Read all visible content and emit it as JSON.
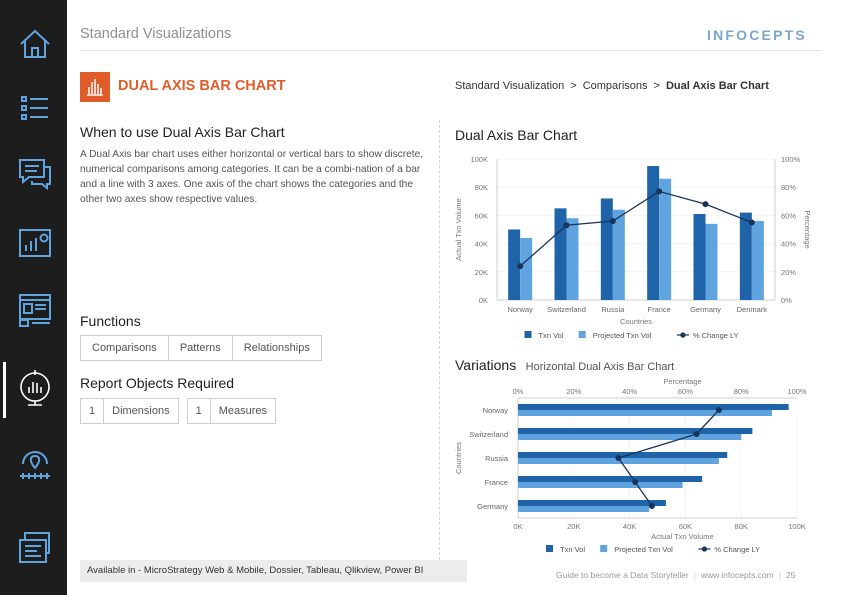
{
  "header": {
    "title": "Standard Visualizations",
    "logo_text": "INFOCEPTS"
  },
  "page": {
    "title": "DUAL AXIS BAR CHART",
    "breadcrumb": [
      "Standard Visualization",
      "Comparisons",
      "Dual Axis Bar Chart"
    ],
    "breadcrumb_sep": ">",
    "when_heading": "When to use Dual Axis Bar Chart",
    "when_text": "A Dual Axis bar chart uses either horizontal or vertical bars to show discrete, numerical comparisons among categories. It can be a combi-nation of a bar and a line with 3 axes. One axis of the chart shows the categories and the other two axes show respective values.",
    "functions_heading": "Functions",
    "functions": [
      "Comparisons",
      "Patterns",
      "Relationships"
    ],
    "objects_heading": "Report Objects Required",
    "objects": [
      {
        "count": "1",
        "label": "Dimensions"
      },
      {
        "count": "1",
        "label": "Measures"
      }
    ],
    "chart_heading": "Dual Axis Bar Chart",
    "variations_heading": "Variations",
    "variations_sub": "Horizontal Dual Axis Bar Chart",
    "available": "Available in - MicroStrategy Web & Mobile, Dossier, Tableau, Qlikview, Power BI"
  },
  "footer": {
    "text": "Guide to become a Data Storyteller",
    "url": "www.infocepts.com",
    "page": "25"
  },
  "sidebar": {
    "icons": [
      "home-icon",
      "list-icon",
      "chat-icon",
      "dashboard-icon",
      "browser-icon",
      "chart-target-icon",
      "map-icon",
      "cards-icon"
    ]
  },
  "colors": {
    "accent": "#e05d2a",
    "dark_blue": "#1f64a8",
    "light_blue": "#5fa3df",
    "line": "#17355a",
    "sidebar": "#1d1d1d"
  },
  "chart_data": [
    {
      "type": "bar",
      "orientation": "vertical",
      "categories": [
        "Norway",
        "Switzerland",
        "Russia",
        "France",
        "Germany",
        "Denmark"
      ],
      "series": [
        {
          "name": "Txn Vol",
          "axis": "left",
          "values": [
            50000,
            65000,
            72000,
            95000,
            61000,
            62000
          ]
        },
        {
          "name": "Projected Txn Vol",
          "axis": "left",
          "values": [
            44000,
            58000,
            64000,
            86000,
            54000,
            56000
          ]
        },
        {
          "name": "% Change LY",
          "axis": "right",
          "kind": "line",
          "values": [
            24,
            53,
            56,
            77,
            68,
            55
          ]
        }
      ],
      "xlabel": "Countries",
      "ylabel": "Actual Txn Volume",
      "y2label": "Percentage",
      "yticks": [
        "0K",
        "20K",
        "40K",
        "60K",
        "80K",
        "100K"
      ],
      "y2ticks": [
        "0%",
        "20%",
        "40%",
        "60%",
        "80%",
        "100%"
      ],
      "ylim": [
        0,
        100000
      ],
      "y2lim": [
        0,
        100
      ],
      "legend": "bottom"
    },
    {
      "type": "bar",
      "orientation": "horizontal",
      "categories": [
        "Norway",
        "Switzerland",
        "Russia",
        "France",
        "Germany"
      ],
      "series": [
        {
          "name": "Txn Vol",
          "axis": "bottom",
          "values": [
            97000,
            84000,
            75000,
            66000,
            53000
          ]
        },
        {
          "name": "Projected Txn Vol",
          "axis": "bottom",
          "values": [
            91000,
            80000,
            72000,
            59000,
            47000
          ]
        },
        {
          "name": "% Change LY",
          "axis": "top",
          "kind": "line",
          "values": [
            72,
            64,
            36,
            42,
            48
          ]
        }
      ],
      "xlabel": "Actual Txn Volume",
      "ylabel": "Countries",
      "x2label": "Percentage",
      "xticks": [
        "0K",
        "20K",
        "40K",
        "60K",
        "80K",
        "100K"
      ],
      "x2ticks": [
        "0%",
        "20%",
        "40%",
        "60%",
        "80%",
        "100%"
      ],
      "xlim": [
        0,
        100000
      ],
      "x2lim": [
        0,
        100
      ],
      "legend": "bottom"
    }
  ]
}
